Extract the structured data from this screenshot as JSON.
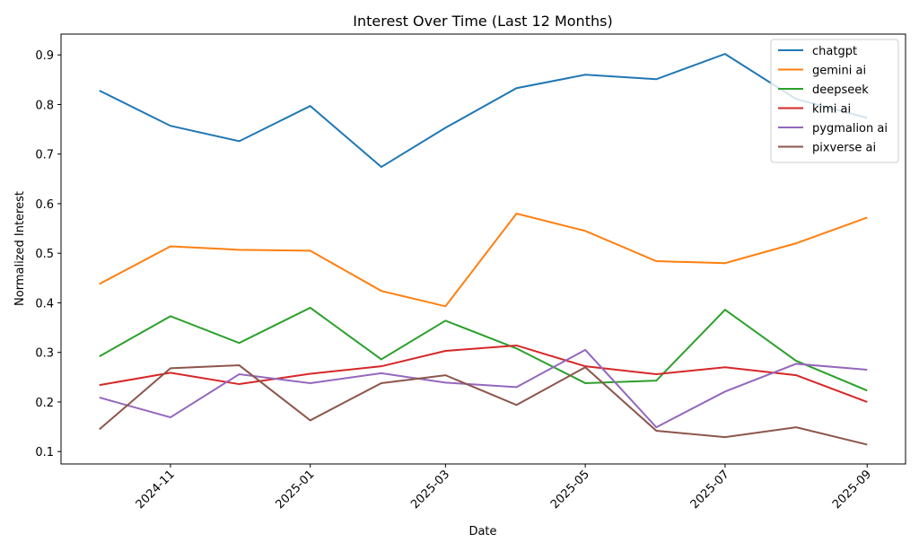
{
  "chart_data": {
    "type": "line",
    "title": "Interest Over Time (Last 12 Months)",
    "x_label": "Date",
    "y_label": "Normalized Interest",
    "x": [
      "2024-10",
      "2024-11",
      "2024-12",
      "2025-01",
      "2025-02",
      "2025-03",
      "2025-04",
      "2025-05",
      "2025-06",
      "2025-07",
      "2025-08",
      "2025-09"
    ],
    "xticks": [
      "2024-11",
      "2025-01",
      "2025-03",
      "2025-05",
      "2025-07",
      "2025-09"
    ],
    "ylim": [
      0.075,
      0.942
    ],
    "yticks": [
      0.1,
      0.2,
      0.3,
      0.4,
      0.5,
      0.6,
      0.7,
      0.8,
      0.9
    ],
    "legend": "upper right",
    "series": [
      {
        "name": "chatgpt",
        "color": "#1f77b4",
        "values": [
          0.828,
          0.757,
          0.726,
          0.797,
          0.674,
          0.753,
          0.833,
          0.86,
          0.851,
          0.902,
          0.811,
          0.773
        ]
      },
      {
        "name": "gemini ai",
        "color": "#ff7f0e",
        "values": [
          0.438,
          0.514,
          0.507,
          0.505,
          0.424,
          0.393,
          0.58,
          0.545,
          0.484,
          0.48,
          0.52,
          0.572
        ]
      },
      {
        "name": "deepseek",
        "color": "#2ca02c",
        "values": [
          0.292,
          0.373,
          0.319,
          0.39,
          0.286,
          0.364,
          0.308,
          0.238,
          0.243,
          0.386,
          0.283,
          0.223
        ]
      },
      {
        "name": "kimi ai",
        "color": "#d62728",
        "values": [
          0.234,
          0.259,
          0.236,
          0.257,
          0.272,
          0.303,
          0.314,
          0.272,
          0.256,
          0.27,
          0.254,
          0.2
        ]
      },
      {
        "name": "pygmalion ai",
        "color": "#9467bd",
        "values": [
          0.209,
          0.169,
          0.256,
          0.238,
          0.258,
          0.239,
          0.23,
          0.305,
          0.149,
          0.221,
          0.277,
          0.265
        ]
      },
      {
        "name": "pixverse ai",
        "color": "#8c564b",
        "values": [
          0.145,
          0.268,
          0.274,
          0.163,
          0.238,
          0.254,
          0.194,
          0.27,
          0.142,
          0.129,
          0.149,
          0.114
        ]
      }
    ]
  }
}
